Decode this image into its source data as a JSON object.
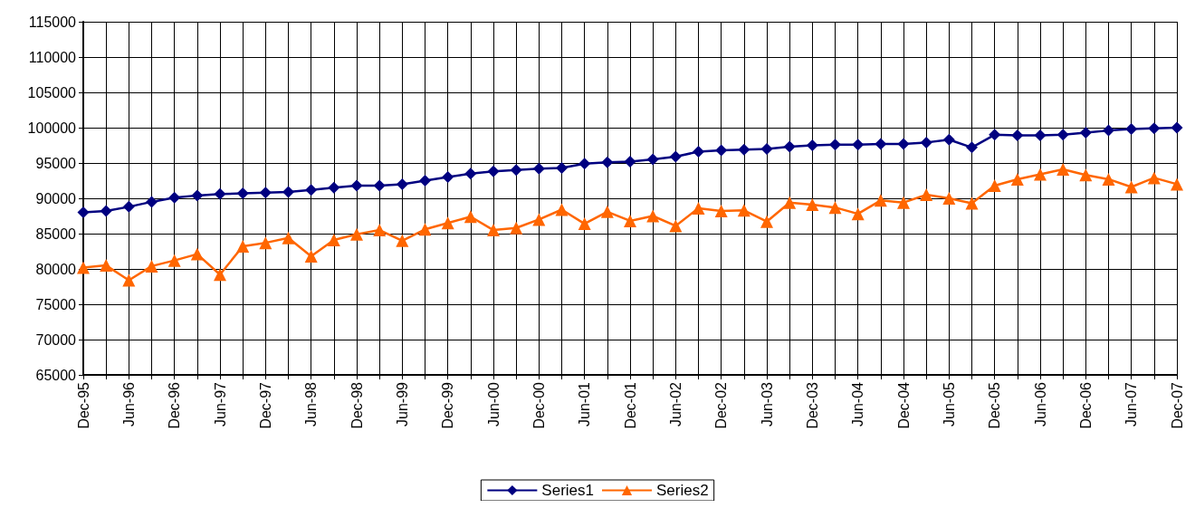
{
  "chart_data": {
    "type": "line",
    "categories": [
      "Dec-95",
      null,
      "Jun-96",
      null,
      "Dec-96",
      null,
      "Jun-97",
      null,
      "Dec-97",
      null,
      "Jun-98",
      null,
      "Dec-98",
      null,
      "Jun-99",
      null,
      "Dec-99",
      null,
      "Jun-00",
      null,
      "Dec-00",
      null,
      "Jun-01",
      null,
      "Dec-01",
      null,
      "Jun-02",
      null,
      "Dec-02",
      null,
      "Jun-03",
      null,
      "Dec-03",
      null,
      "Jun-04",
      null,
      "Dec-04",
      null,
      "Jun-05",
      null,
      "Dec-05",
      null,
      "Jun-06",
      null,
      "Dec-06",
      null,
      "Jun-07",
      null,
      "Dec-07"
    ],
    "series": [
      {
        "name": "Series1",
        "color": "#000080",
        "marker": "diamond",
        "values": [
          88000,
          88200,
          88800,
          89500,
          90100,
          90400,
          90600,
          90700,
          90800,
          90900,
          91200,
          91500,
          91800,
          91800,
          92000,
          92500,
          93000,
          93500,
          93800,
          94000,
          94200,
          94300,
          94900,
          95100,
          95200,
          95500,
          95900,
          96600,
          96800,
          96900,
          97000,
          97300,
          97500,
          97600,
          97600,
          97700,
          97700,
          97900,
          98300,
          97200,
          99000,
          98900,
          98900,
          99000,
          99300,
          99600,
          99800,
          99900,
          100000
        ]
      },
      {
        "name": "Series2",
        "color": "#ff6600",
        "marker": "triangle",
        "values": [
          80200,
          80500,
          78400,
          80400,
          81200,
          82100,
          79200,
          83200,
          83700,
          84400,
          81800,
          84100,
          84900,
          85500,
          84000,
          85600,
          86500,
          87400,
          85500,
          85800,
          87000,
          88400,
          86400,
          88100,
          86800,
          87500,
          86100,
          88600,
          88200,
          88300,
          86700,
          89400,
          89100,
          88700,
          87800,
          89700,
          89400,
          90500,
          90000,
          89300,
          91800,
          92700,
          93400,
          94100,
          93300,
          92700,
          91600,
          92900,
          92000
        ]
      }
    ],
    "ylim": [
      65000,
      115000
    ],
    "yticks": [
      65000,
      70000,
      75000,
      80000,
      85000,
      90000,
      95000,
      100000,
      105000,
      110000,
      115000
    ],
    "grid": true,
    "legend": "bottom"
  }
}
